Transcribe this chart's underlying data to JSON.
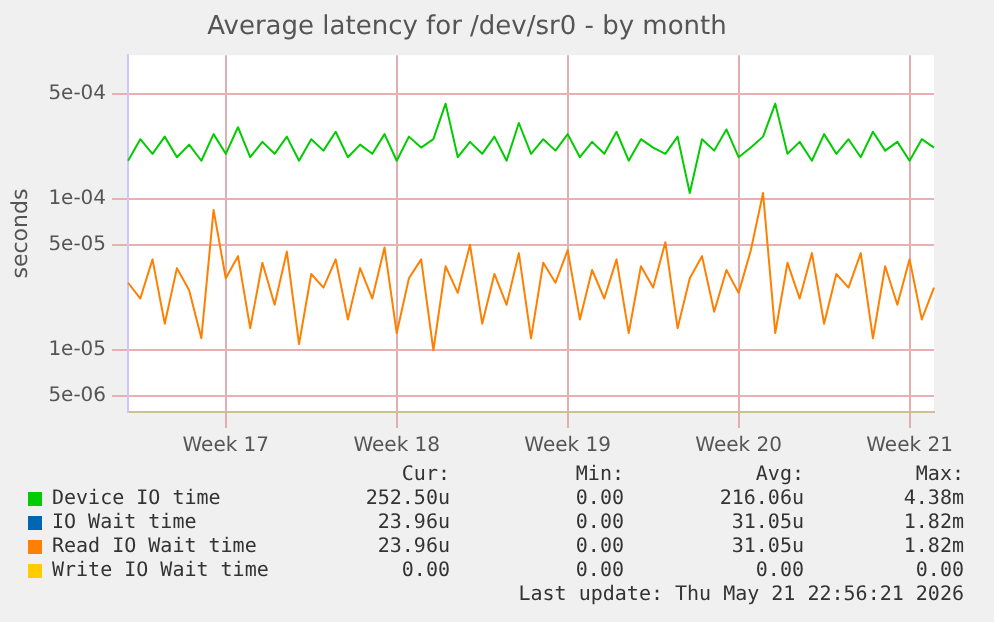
{
  "chart_data": {
    "type": "line",
    "title": "Average latency for /dev/sr0 - by month",
    "ylabel": "seconds",
    "categories": [
      null,
      null,
      null,
      null,
      null,
      null,
      null,
      null,
      "Week 17",
      null,
      null,
      null,
      null,
      null,
      null,
      null,
      null,
      null,
      null,
      null,
      null,
      null,
      "Week 18",
      null,
      null,
      null,
      null,
      null,
      null,
      null,
      null,
      null,
      null,
      null,
      null,
      null,
      "Week 19",
      null,
      null,
      null,
      null,
      null,
      null,
      null,
      null,
      null,
      null,
      null,
      null,
      null,
      "Week 20",
      null,
      null,
      null,
      null,
      null,
      null,
      null,
      null,
      null,
      null,
      null,
      null,
      null,
      "Week 21",
      null,
      null
    ],
    "series": [
      {
        "name": "Device IO time",
        "color": "#00cc00",
        "values": [
          0.00018,
          0.00025,
          0.0002,
          0.00026,
          0.00019,
          0.00023,
          0.00018,
          0.00027,
          0.0002,
          0.0003,
          0.00019,
          0.00024,
          0.0002,
          0.00026,
          0.00018,
          0.00025,
          0.00021,
          0.00028,
          0.00019,
          0.00023,
          0.0002,
          0.00027,
          0.00018,
          0.00026,
          0.00022,
          0.00025,
          0.00043,
          0.00019,
          0.00024,
          0.0002,
          0.00026,
          0.00018,
          0.00032,
          0.0002,
          0.00025,
          0.00021,
          0.00027,
          0.00019,
          0.00024,
          0.0002,
          0.00028,
          0.00018,
          0.00025,
          0.00022,
          0.0002,
          0.00026,
          0.00011,
          0.00025,
          0.00021,
          0.00029,
          0.00019,
          0.00022,
          0.00026,
          0.00043,
          0.0002,
          0.00024,
          0.00018,
          0.00027,
          0.0002,
          0.00025,
          0.00019,
          0.00028,
          0.00021,
          0.00024,
          0.00018,
          0.00025,
          0.00022
        ]
      },
      {
        "name": "IO Wait time",
        "color": "#0066b3",
        "values": [
          null,
          null,
          null,
          null,
          null,
          null,
          null,
          null,
          null,
          null,
          null,
          null,
          null,
          null,
          null,
          null,
          null,
          null,
          null,
          null,
          null,
          null,
          null,
          null,
          null,
          null,
          null,
          null,
          null,
          null,
          null,
          null,
          null,
          null,
          null,
          null,
          null,
          null,
          null,
          null,
          null,
          null,
          null,
          null,
          null,
          null,
          null,
          null,
          null,
          null,
          null,
          null,
          null,
          null,
          null,
          null,
          null,
          null,
          null,
          null,
          null,
          null,
          null,
          null,
          null,
          null,
          null
        ]
      },
      {
        "name": "Read IO Wait time",
        "color": "#ff8000",
        "values": [
          2.8e-05,
          2.2e-05,
          4e-05,
          1.5e-05,
          3.5e-05,
          2.5e-05,
          1.2e-05,
          8.5e-05,
          3e-05,
          4.2e-05,
          1.4e-05,
          3.8e-05,
          2e-05,
          4.5e-05,
          1.1e-05,
          3.2e-05,
          2.6e-05,
          4e-05,
          1.6e-05,
          3.5e-05,
          2.2e-05,
          4.8e-05,
          1.3e-05,
          3e-05,
          4e-05,
          1e-05,
          3.6e-05,
          2.4e-05,
          5e-05,
          1.5e-05,
          3.2e-05,
          2e-05,
          4.4e-05,
          1.2e-05,
          3.8e-05,
          2.8e-05,
          4.6e-05,
          1.6e-05,
          3.4e-05,
          2.2e-05,
          4e-05,
          1.3e-05,
          3.6e-05,
          2.6e-05,
          5.2e-05,
          1.4e-05,
          3e-05,
          4.2e-05,
          1.8e-05,
          3.4e-05,
          2.4e-05,
          4.6e-05,
          0.00011,
          1.3e-05,
          3.8e-05,
          2.2e-05,
          4.4e-05,
          1.5e-05,
          3.2e-05,
          2.6e-05,
          4.4e-05,
          1.2e-05,
          3.6e-05,
          2e-05,
          4e-05,
          1.6e-05,
          2.6e-05
        ]
      },
      {
        "name": "Write IO Wait time",
        "color": "#ffcc00",
        "values": [
          null,
          null,
          null,
          null,
          null,
          null,
          null,
          null,
          null,
          null,
          null,
          null,
          null,
          null,
          null,
          null,
          null,
          null,
          null,
          null,
          null,
          null,
          null,
          null,
          null,
          null,
          null,
          null,
          null,
          null,
          null,
          null,
          null,
          null,
          null,
          null,
          null,
          null,
          null,
          null,
          null,
          null,
          null,
          null,
          null,
          null,
          null,
          null,
          null,
          null,
          null,
          null,
          null,
          null,
          null,
          null,
          null,
          null,
          null,
          null,
          null,
          null,
          null,
          null,
          null,
          null,
          null
        ]
      }
    ],
    "ylim": [
      3.9e-06,
      0.0009
    ],
    "yticks": [
      {
        "value": 5e-06,
        "label": "5e-06"
      },
      {
        "value": 1e-05,
        "label": "1e-05"
      },
      {
        "value": 5e-05,
        "label": "5e-05"
      },
      {
        "value": 0.0001,
        "label": "1e-04"
      },
      {
        "value": 0.0005,
        "label": "5e-04"
      }
    ],
    "log": "y",
    "grid": true,
    "legend": "bottom",
    "marker": "none",
    "line_style": "solid",
    "annotations": [
      "Cur:",
      "Min:",
      "Avg:",
      "Max:",
      "252.50u",
      "0.00",
      "216.06u",
      "4.38m",
      "23.96u",
      "0.00",
      "31.05u",
      "1.82m",
      "23.96u",
      "0.00",
      "31.05u",
      "1.82m",
      "0.00",
      "0.00",
      "0.00",
      "0.00",
      "Last update: Thu May 21 22:56:21 2026"
    ]
  }
}
